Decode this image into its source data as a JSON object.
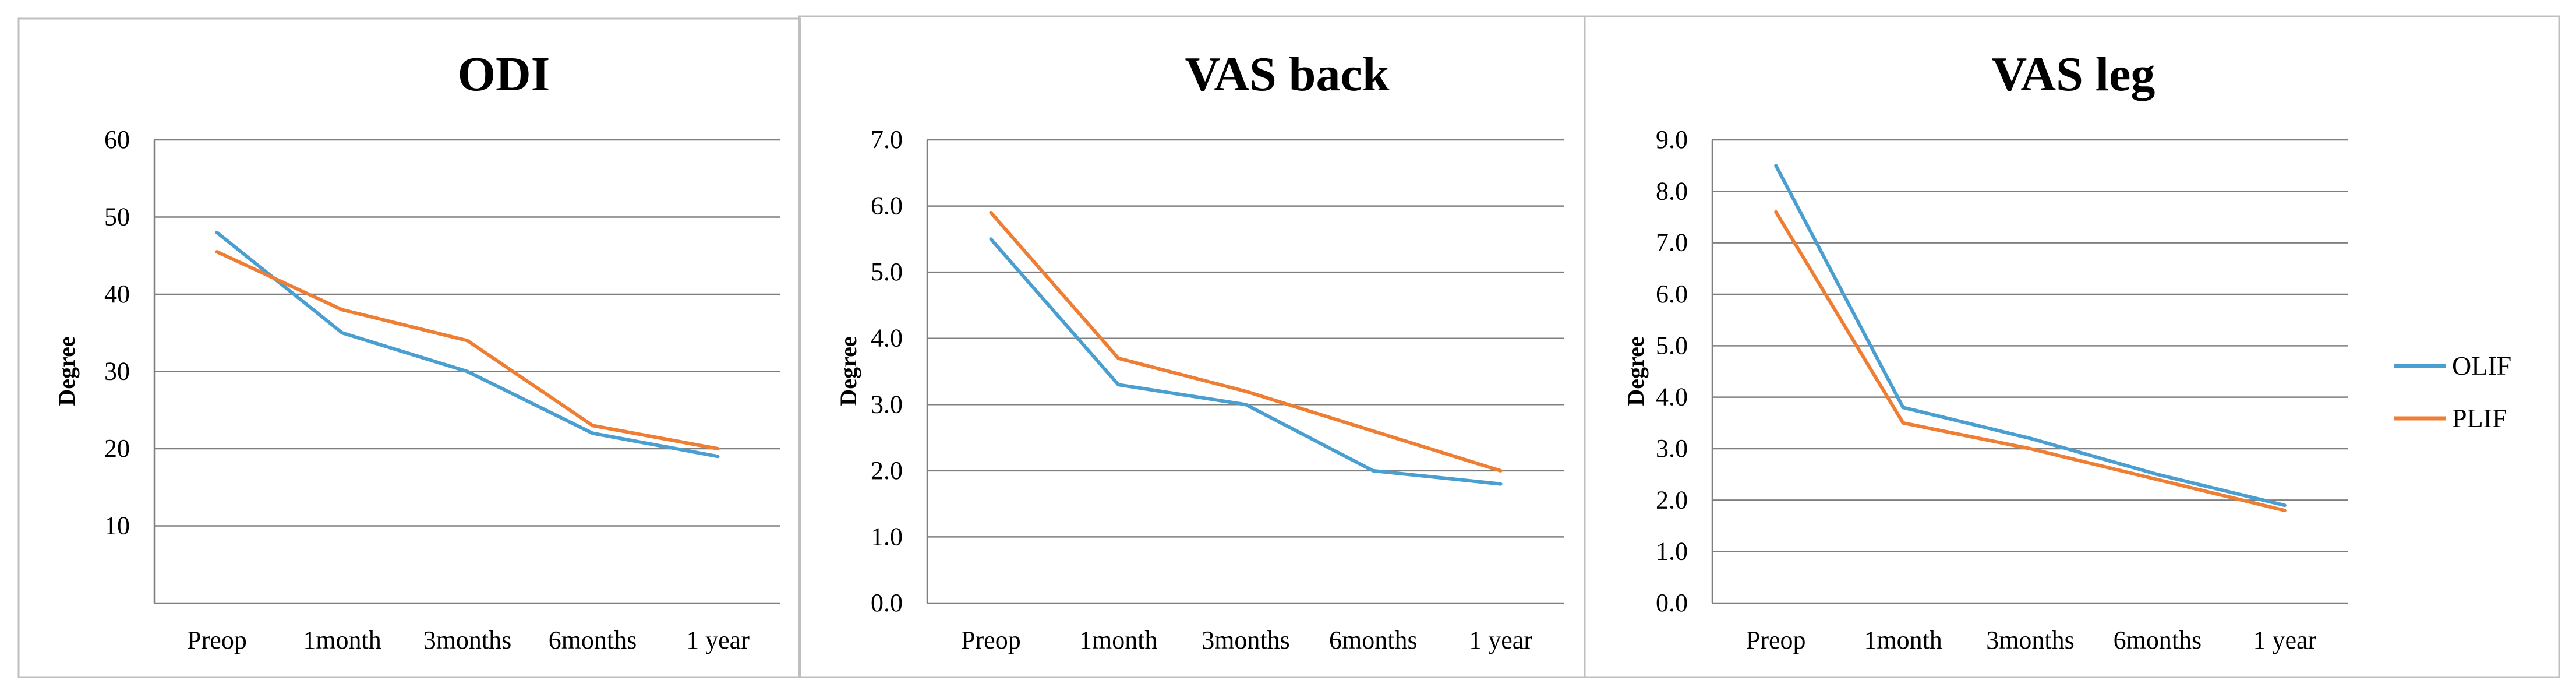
{
  "colors": {
    "olif": "#4A9FD0",
    "plif": "#EE7E33",
    "grid": "#7f7f7f",
    "axis": "#7f7f7f",
    "frame": "#bfbfbf",
    "text": "#000000"
  },
  "legend": {
    "position": "right",
    "items": [
      {
        "name": "OLIF",
        "color_key": "olif"
      },
      {
        "name": "PLIF",
        "color_key": "plif"
      }
    ]
  },
  "chart_data": [
    {
      "type": "line",
      "title": "ODI",
      "xlabel": "",
      "ylabel": "Degree",
      "categories": [
        "Preop",
        "1month",
        "3months",
        "6months",
        "1 year"
      ],
      "ylim": [
        0,
        60
      ],
      "yticks": [
        "10",
        "20",
        "30",
        "40",
        "50",
        "60"
      ],
      "grid": true,
      "series": [
        {
          "name": "OLIF",
          "values": [
            48,
            35,
            30,
            22,
            19
          ]
        },
        {
          "name": "PLIF",
          "values": [
            45.5,
            38,
            34,
            23,
            20
          ]
        }
      ]
    },
    {
      "type": "line",
      "title": "VAS back",
      "xlabel": "",
      "ylabel": "Degree",
      "categories": [
        "Preop",
        "1month",
        "3months",
        "6months",
        "1 year"
      ],
      "ylim": [
        0,
        7
      ],
      "yticks": [
        "0.0",
        "1.0",
        "2.0",
        "3.0",
        "4.0",
        "5.0",
        "6.0",
        "7.0"
      ],
      "grid": true,
      "series": [
        {
          "name": "OLIF",
          "values": [
            5.5,
            3.3,
            3.0,
            2.0,
            1.8
          ]
        },
        {
          "name": "PLIF",
          "values": [
            5.9,
            3.7,
            3.2,
            2.6,
            2.0
          ]
        }
      ]
    },
    {
      "type": "line",
      "title": "VAS leg",
      "xlabel": "",
      "ylabel": "Degree",
      "categories": [
        "Preop",
        "1month",
        "3months",
        "6months",
        "1 year"
      ],
      "ylim": [
        0,
        9
      ],
      "yticks": [
        "0.0",
        "1.0",
        "2.0",
        "3.0",
        "4.0",
        "5.0",
        "6.0",
        "7.0",
        "8.0",
        "9.0"
      ],
      "grid": true,
      "series": [
        {
          "name": "OLIF",
          "values": [
            8.5,
            3.8,
            3.2,
            2.5,
            1.9
          ]
        },
        {
          "name": "PLIF",
          "values": [
            7.6,
            3.5,
            3.0,
            2.4,
            1.8
          ]
        }
      ]
    }
  ]
}
